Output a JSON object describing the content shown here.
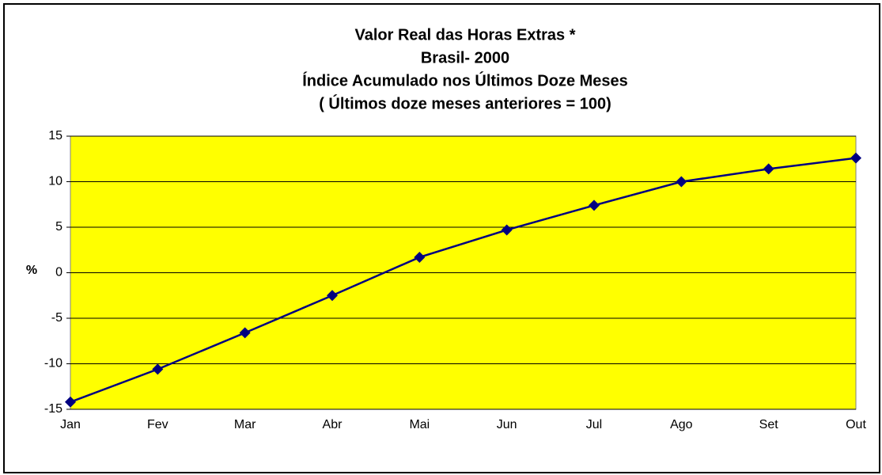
{
  "chart_data": {
    "type": "line",
    "title": [
      "Valor Real das Horas Extras *",
      "Brasil- 2000",
      "Índice Acumulado nos Últimos Doze Meses",
      "( Últimos doze meses anteriores = 100)"
    ],
    "y_label": "%",
    "categories": [
      "Jan",
      "Fev",
      "Mar",
      "Abr",
      "Mai",
      "Jun",
      "Jul",
      "Ago",
      "Set",
      "Out"
    ],
    "series": [
      {
        "color": "#000080",
        "values": [
          -14.2,
          -10.6,
          -6.6,
          -2.5,
          1.7,
          4.7,
          7.4,
          10.0,
          11.4,
          12.6
        ]
      }
    ],
    "ylim": [
      -15,
      15
    ],
    "yticks": [
      -15,
      -10,
      -5,
      0,
      5,
      10,
      15
    ],
    "grid": true,
    "plot_color": "#ffff00"
  }
}
